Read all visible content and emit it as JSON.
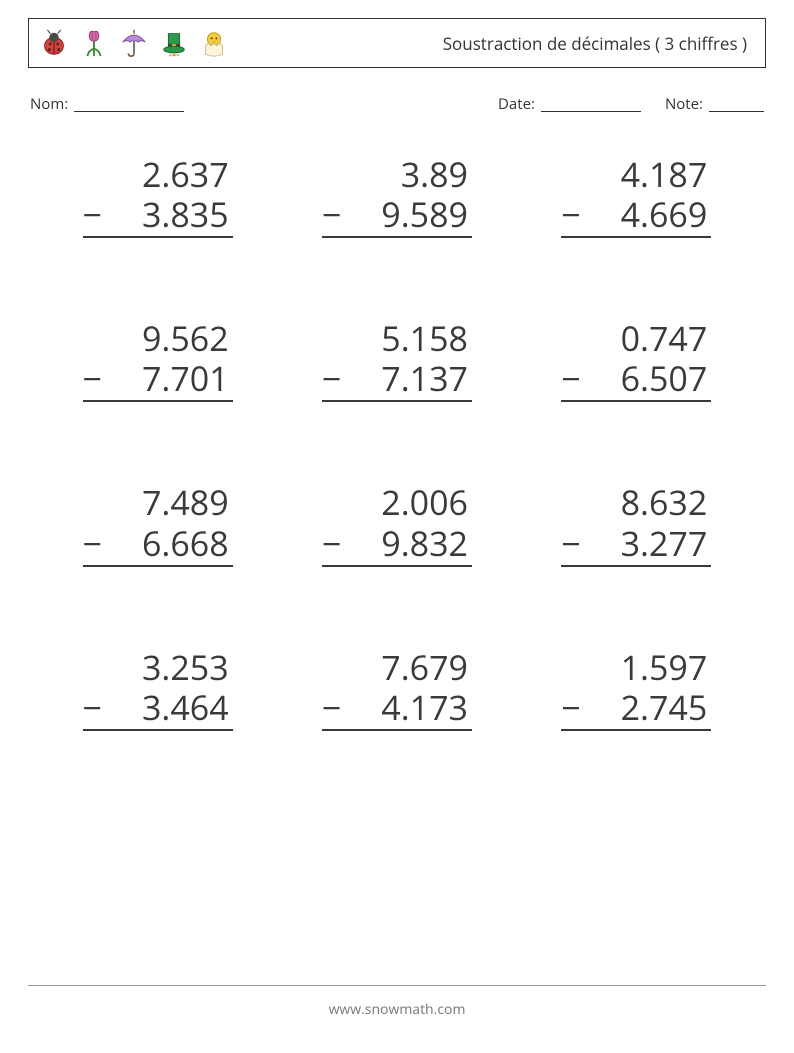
{
  "header": {
    "title": "Soustraction de décimales ( 3 chiffres )"
  },
  "meta": {
    "name_label": "Nom:",
    "date_label": "Date:",
    "note_label": "Note:"
  },
  "operator": "−",
  "problems": [
    {
      "minuend": "2.637",
      "subtrahend": "3.835"
    },
    {
      "minuend": "3.89",
      "subtrahend": "9.589"
    },
    {
      "minuend": "4.187",
      "subtrahend": "4.669"
    },
    {
      "minuend": "9.562",
      "subtrahend": "7.701"
    },
    {
      "minuend": "5.158",
      "subtrahend": "7.137"
    },
    {
      "minuend": "0.747",
      "subtrahend": "6.507"
    },
    {
      "minuend": "7.489",
      "subtrahend": "6.668"
    },
    {
      "minuend": "2.006",
      "subtrahend": "9.832"
    },
    {
      "minuend": "8.632",
      "subtrahend": "3.277"
    },
    {
      "minuend": "3.253",
      "subtrahend": "3.464"
    },
    {
      "minuend": "7.679",
      "subtrahend": "4.173"
    },
    {
      "minuend": "1.597",
      "subtrahend": "2.745"
    }
  ],
  "footer": {
    "site": "www.snowmath.com"
  },
  "colors": {
    "text": "#3a3a3a",
    "border": "#333333",
    "footer_text": "#777777",
    "background": "#ffffff"
  },
  "icons": [
    "ladybug-icon",
    "tulip-icon",
    "umbrella-icon",
    "leprechaun-hat-icon",
    "chick-egg-icon"
  ]
}
